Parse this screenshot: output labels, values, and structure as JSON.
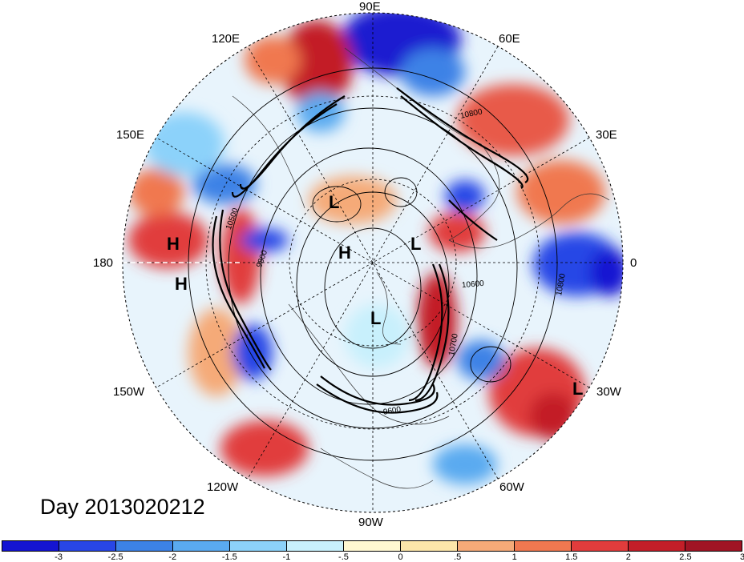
{
  "title": "Day 2013020212",
  "longitude_labels": [
    {
      "id": "90e",
      "text": "90E"
    },
    {
      "id": "60e",
      "text": "60E"
    },
    {
      "id": "30e",
      "text": "30E"
    },
    {
      "id": "0",
      "text": "0"
    },
    {
      "id": "30w",
      "text": "30W"
    },
    {
      "id": "60w",
      "text": "60W"
    },
    {
      "id": "90w",
      "text": "90W"
    },
    {
      "id": "120w",
      "text": "120W"
    },
    {
      "id": "150w",
      "text": "150W"
    },
    {
      "id": "180",
      "text": "180"
    },
    {
      "id": "150e",
      "text": "150E"
    },
    {
      "id": "120e",
      "text": "120E"
    }
  ],
  "pressure_centers": [
    {
      "id": "l1",
      "text": "L"
    },
    {
      "id": "l2",
      "text": "L"
    },
    {
      "id": "l3",
      "text": "L"
    },
    {
      "id": "l4",
      "text": "L"
    },
    {
      "id": "h1",
      "text": "H"
    },
    {
      "id": "h2",
      "text": "H"
    },
    {
      "id": "h3",
      "text": "H"
    }
  ],
  "contour_labels": [
    "10800",
    "10500",
    "9800",
    "10600",
    "10700",
    "10800",
    "9600"
  ],
  "colorbar": {
    "colors": [
      "#1414d2",
      "#2846e6",
      "#3c82e6",
      "#5aaaf0",
      "#8cd2fa",
      "#c8f0fc",
      "#fff8d2",
      "#fce6aa",
      "#f5aa78",
      "#f07850",
      "#e13c3c",
      "#c31e28",
      "#a01424"
    ],
    "tick_labels": [
      "-3",
      "-2.5",
      "-2",
      "-1.5",
      "-1",
      "-.5",
      "0",
      ".5",
      "1",
      "1.5",
      "2",
      "2.5",
      "3"
    ]
  }
}
